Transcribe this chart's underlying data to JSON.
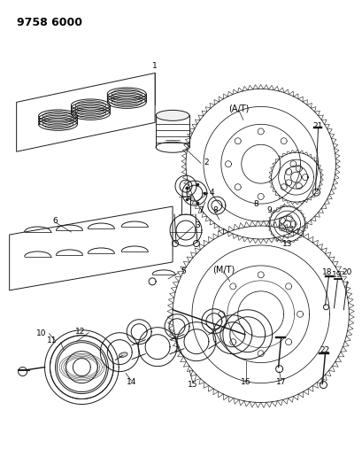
{
  "title": "9758 6000",
  "bg": "#ffffff",
  "lc": "#1a1a1a",
  "lw": 0.7,
  "fig_w": 4.1,
  "fig_h": 5.33,
  "dpi": 100
}
